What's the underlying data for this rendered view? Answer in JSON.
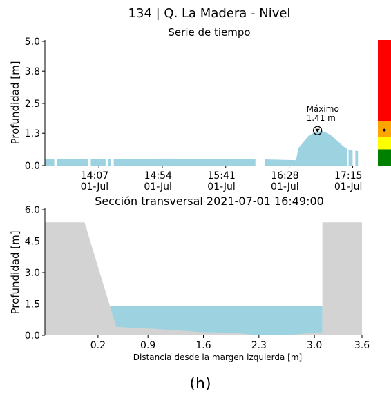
{
  "figure_label": "(h)",
  "chart_data": [
    {
      "type": "area",
      "title": "134 | Q. La Madera - Nivel",
      "subtitle": "Serie de tiempo",
      "ylabel": "Profundidad [m]",
      "xlabel": "",
      "xlim": [
        "13:27",
        "17:24"
      ],
      "ylim": [
        0,
        5.0
      ],
      "y_ticks": [
        "0.0",
        "1.3",
        "2.5",
        "3.8",
        "5.0"
      ],
      "x_ticks": [
        {
          "time": "14:07",
          "date": "01-Jul"
        },
        {
          "time": "14:54",
          "date": "01-Jul"
        },
        {
          "time": "15:41",
          "date": "01-Jul"
        },
        {
          "time": "16:28",
          "date": "01-Jul"
        },
        {
          "time": "17:15",
          "date": "01-Jul"
        }
      ],
      "series_color": "#9dd3e0",
      "segments": [
        [
          [
            "13:27",
            0.25
          ],
          [
            "13:34",
            0.25
          ]
        ],
        [
          [
            "13:36",
            0.26
          ],
          [
            "13:59",
            0.26
          ]
        ],
        [
          [
            "14:01",
            0.26
          ],
          [
            "14:12",
            0.26
          ]
        ],
        [
          [
            "14:14",
            0.27
          ],
          [
            "14:16",
            0.27
          ]
        ],
        [
          [
            "14:18",
            0.27
          ],
          [
            "15:00",
            0.28
          ],
          [
            "15:40",
            0.27
          ],
          [
            "16:03",
            0.27
          ]
        ],
        [
          [
            "16:10",
            0.25
          ],
          [
            "16:33",
            0.22
          ],
          [
            "16:35",
            0.72
          ],
          [
            "16:38",
            0.9
          ],
          [
            "16:42",
            1.18
          ],
          [
            "16:47",
            1.35
          ],
          [
            "16:52",
            1.39
          ],
          [
            "16:56",
            1.32
          ],
          [
            "17:00",
            1.18
          ],
          [
            "17:04",
            0.98
          ],
          [
            "17:08",
            0.78
          ],
          [
            "17:11",
            0.67
          ]
        ],
        [
          [
            "17:12",
            0.65
          ],
          [
            "17:15",
            0.6
          ]
        ],
        [
          [
            "17:17",
            0.6
          ],
          [
            "17:19",
            0.58
          ]
        ]
      ],
      "annotation": {
        "line1": "Máximo",
        "line2": "1.41 m",
        "time": "16:49",
        "value": 1.41
      },
      "alert_levels": [
        {
          "color": "#008000",
          "from": 0.0,
          "to": 0.65
        },
        {
          "color": "#ffff00",
          "from": 0.65,
          "to": 1.15
        },
        {
          "color": "#ffa500",
          "from": 1.15,
          "to": 1.78
        },
        {
          "color": "#ff0000",
          "from": 1.78,
          "to": 5.0
        }
      ],
      "alert_marker_value": 1.41
    },
    {
      "type": "area",
      "title": "Sección transversal 2021-07-01 16:49:00",
      "xlabel": "Distancia desde la margen izquierda [m]",
      "ylabel": "Profundidad [m]",
      "xlim": [
        -0.4,
        3.6
      ],
      "ylim": [
        0,
        6.0
      ],
      "x_ticks": [
        "0.2",
        "0.9",
        "1.6",
        "2.3",
        "3.0",
        "3.6"
      ],
      "x_tick_values": [
        0.27,
        0.9,
        1.6,
        2.3,
        3.0,
        3.6
      ],
      "y_ticks": [
        "0.0",
        "1.5",
        "3.0",
        "4.5",
        "6.0"
      ],
      "y_tick_values": [
        0,
        1.5,
        3.0,
        4.5,
        6.0
      ],
      "ground_profile": [
        [
          -0.4,
          5.4
        ],
        [
          0.1,
          5.4
        ],
        [
          0.5,
          0.4
        ],
        [
          1.0,
          0.3
        ],
        [
          1.6,
          0.15
        ],
        [
          2.0,
          0.12
        ],
        [
          2.3,
          0.0
        ],
        [
          2.6,
          0.0
        ],
        [
          3.1,
          0.15
        ],
        [
          3.1,
          5.4
        ],
        [
          3.6,
          5.4
        ]
      ],
      "water_level": 1.41,
      "water_x": [
        0.41,
        3.1
      ],
      "ground_color": "#d3d3d3",
      "water_color": "#9dd3e0"
    }
  ]
}
